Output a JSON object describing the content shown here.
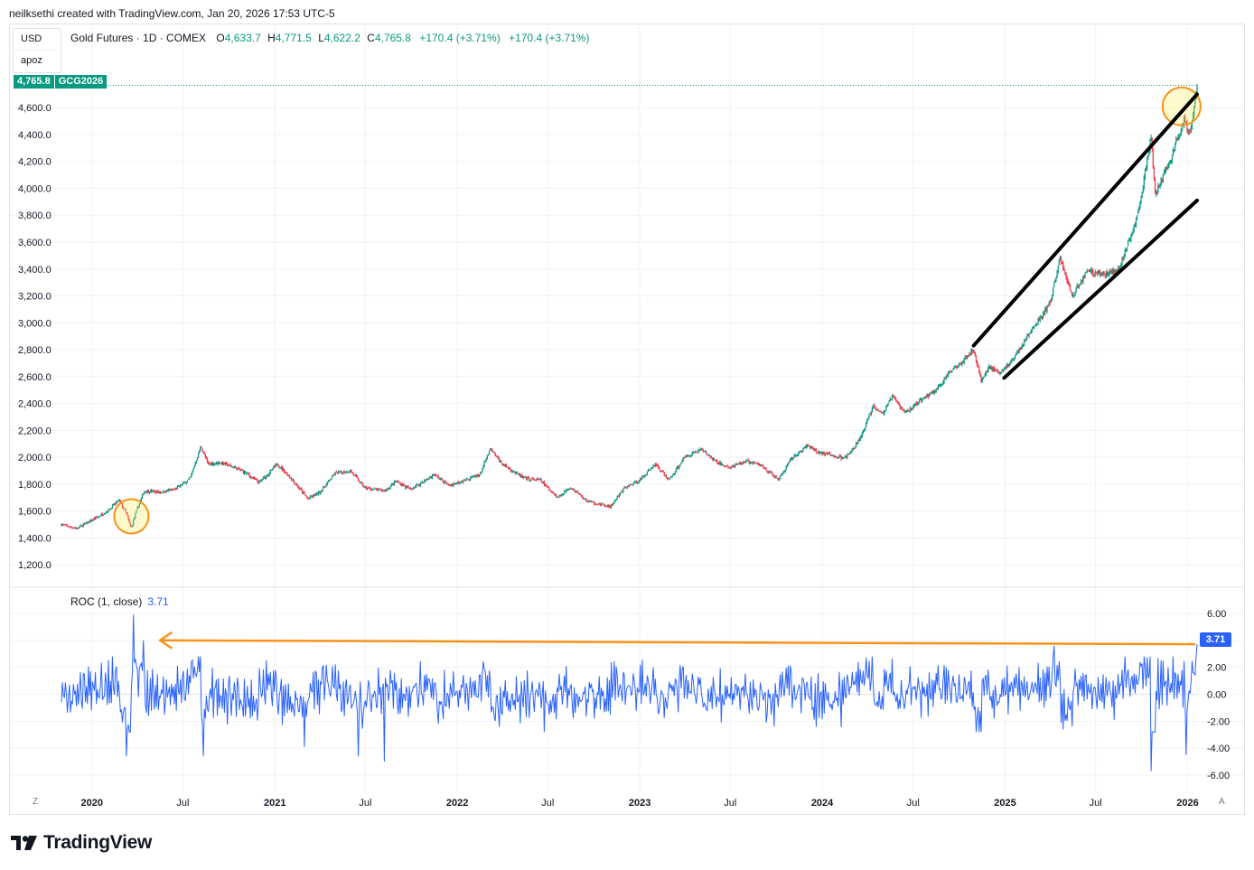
{
  "header": {
    "credit": "neilksethi created with TradingView.com, Jan 20, 2026 17:53 UTC-5"
  },
  "currency_box": {
    "currency": "USD",
    "scale": "apoz"
  },
  "legend": {
    "symbol": "Gold Futures · 1D · COMEX",
    "open_label": "O",
    "open": "4,633.7",
    "high_label": "H",
    "high": "4,771.5",
    "low_label": "L",
    "low": "4,622.2",
    "close_label": "C",
    "close": "4,765.8",
    "change": "+170.4 (+3.71%)",
    "change2": "+170.4 (+3.71%)"
  },
  "price_tag": {
    "price": "4,765.8",
    "ticker": "GCG2026"
  },
  "roc_legend": {
    "name": "ROC (1, close)",
    "value": "3.71"
  },
  "roc_tag": "3.71",
  "corner_left": "Z",
  "corner_right": "A",
  "footer": {
    "brand": "TradingView"
  },
  "colors": {
    "up": "#089981",
    "down": "#f23645",
    "roc_line": "#2962ff",
    "annotation": "#f7931a",
    "trendline": "#000000",
    "grid": "#f0f3fa"
  },
  "chart_data": [
    {
      "type": "line",
      "yaxis_side": "left",
      "ylim": [
        1100,
        4850
      ],
      "yticks": [
        "1,200.0",
        "1,400.0",
        "1,600.0",
        "1,800.0",
        "2,000.0",
        "2,200.0",
        "2,400.0",
        "2,600.0",
        "2,800.0",
        "3,000.0",
        "3,200.0",
        "3,400.0",
        "3,600.0",
        "3,800.0",
        "4,000.0",
        "4,200.0",
        "4,400.0",
        "4,600.0"
      ],
      "ytick_values": [
        1200,
        1400,
        1600,
        1800,
        2000,
        2200,
        2400,
        2600,
        2800,
        3000,
        3200,
        3400,
        3600,
        3800,
        4000,
        4200,
        4400,
        4600
      ],
      "xticks": [
        "2020",
        "Jul",
        "2021",
        "Jul",
        "2022",
        "Jul",
        "2023",
        "Jul",
        "2024",
        "Jul",
        "2025",
        "Jul",
        "2026"
      ],
      "xtick_values": [
        "2020-01-01",
        "2020-07-01",
        "2021-01-01",
        "2021-07-01",
        "2022-01-01",
        "2022-07-01",
        "2023-01-01",
        "2023-07-01",
        "2024-01-01",
        "2024-07-01",
        "2025-01-01",
        "2025-07-01",
        "2026-01-01"
      ],
      "xlim": [
        "2019-11-01",
        "2026-01-20"
      ],
      "series": [
        {
          "x": [
            "2019-11-01",
            "2019-12-01",
            "2020-01-01",
            "2020-02-01",
            "2020-02-24",
            "2020-03-10",
            "2020-03-19",
            "2020-04-01",
            "2020-04-15",
            "2020-05-15",
            "2020-06-15",
            "2020-07-15",
            "2020-08-06",
            "2020-08-20",
            "2020-09-15",
            "2020-10-15",
            "2020-11-05",
            "2020-11-30",
            "2020-12-20",
            "2021-01-06",
            "2021-02-01",
            "2021-03-08",
            "2021-04-01",
            "2021-05-01",
            "2021-06-01",
            "2021-06-30",
            "2021-08-09",
            "2021-09-01",
            "2021-09-29",
            "2021-11-16",
            "2021-12-15",
            "2022-01-15",
            "2022-02-15",
            "2022-03-08",
            "2022-04-01",
            "2022-05-15",
            "2022-06-15",
            "2022-07-21",
            "2022-08-15",
            "2022-09-15",
            "2022-10-01",
            "2022-11-03",
            "2022-12-01",
            "2023-01-01",
            "2023-02-01",
            "2023-02-28",
            "2023-04-01",
            "2023-05-04",
            "2023-06-01",
            "2023-06-30",
            "2023-08-01",
            "2023-09-01",
            "2023-10-05",
            "2023-11-01",
            "2023-12-04",
            "2023-12-20",
            "2024-01-15",
            "2024-02-14",
            "2024-03-01",
            "2024-03-20",
            "2024-04-12",
            "2024-05-01",
            "2024-05-20",
            "2024-06-15",
            "2024-07-15",
            "2024-08-15",
            "2024-09-15",
            "2024-10-30",
            "2024-11-14",
            "2024-12-01",
            "2024-12-20",
            "2025-01-15",
            "2025-02-15",
            "2025-03-15",
            "2025-04-01",
            "2025-04-21",
            "2025-05-15",
            "2025-06-15",
            "2025-07-15",
            "2025-08-15",
            "2025-09-15",
            "2025-10-01",
            "2025-10-20",
            "2025-10-28",
            "2025-11-15",
            "2025-12-01",
            "2025-12-26",
            "2026-01-05",
            "2026-01-20"
          ],
          "values": [
            1500,
            1470,
            1530,
            1600,
            1680,
            1580,
            1470,
            1620,
            1750,
            1740,
            1760,
            1840,
            2080,
            1950,
            1960,
            1920,
            1880,
            1810,
            1880,
            1950,
            1850,
            1690,
            1740,
            1880,
            1900,
            1770,
            1750,
            1820,
            1760,
            1870,
            1790,
            1830,
            1870,
            2060,
            1950,
            1840,
            1830,
            1700,
            1780,
            1680,
            1660,
            1630,
            1770,
            1830,
            1950,
            1830,
            2000,
            2060,
            1970,
            1920,
            1970,
            1940,
            1830,
            1990,
            2090,
            2040,
            2020,
            1990,
            2050,
            2160,
            2390,
            2320,
            2450,
            2330,
            2420,
            2500,
            2640,
            2800,
            2570,
            2680,
            2620,
            2720,
            2900,
            3050,
            3150,
            3480,
            3200,
            3390,
            3360,
            3390,
            3700,
            3950,
            4390,
            3950,
            4100,
            4250,
            4520,
            4400,
            4765.8
          ]
        }
      ]
    },
    {
      "type": "line",
      "title": "ROC (1, close)",
      "yaxis_side": "right",
      "ylim": [
        -6.8,
        7.0
      ],
      "yticks": [
        "6.00",
        "4.00",
        "2.00",
        "0.00",
        "-2.00",
        "-4.00",
        "-6.00"
      ],
      "ytick_values": [
        6,
        4,
        2,
        0,
        -2,
        -4,
        -6
      ],
      "last_value": 3.71,
      "notable": [
        {
          "x": "2020-03-10",
          "value": -4.6
        },
        {
          "x": "2020-03-24",
          "value": 5.9
        },
        {
          "x": "2020-04-14",
          "value": 4.0
        },
        {
          "x": "2020-08-11",
          "value": -4.6
        },
        {
          "x": "2021-03-01",
          "value": -3.9
        },
        {
          "x": "2021-06-17",
          "value": -4.6
        },
        {
          "x": "2021-08-09",
          "value": -5.0
        },
        {
          "x": "2025-04-09",
          "value": 3.6
        },
        {
          "x": "2025-10-21",
          "value": -5.7
        },
        {
          "x": "2025-12-29",
          "value": -4.5
        },
        {
          "x": "2026-01-20",
          "value": 3.71
        }
      ]
    }
  ]
}
